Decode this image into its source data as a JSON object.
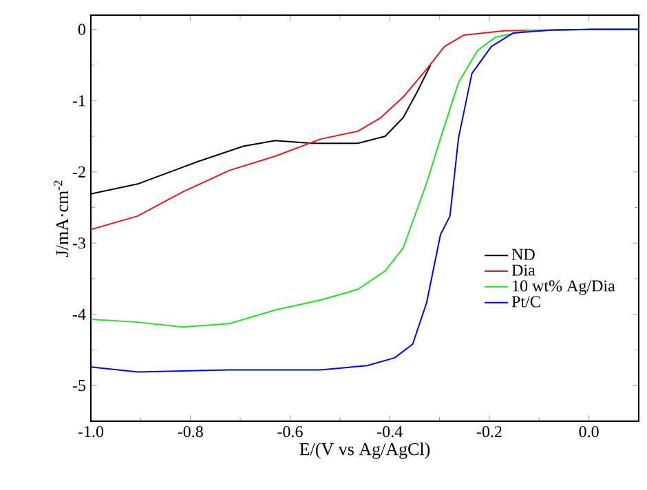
{
  "chart_data": {
    "type": "line",
    "xlabel": "E/(V vs Ag/AgCl)",
    "ylabel": "J/mA·cm$^{-2}$",
    "xlim": [
      -1.0,
      0.1
    ],
    "ylim": [
      -5.5,
      0.2
    ],
    "xticks": [
      {
        "value": -1.0,
        "label": "-1.0"
      },
      -0.8,
      -0.6,
      -0.4,
      -0.2,
      {
        "value": 0.0,
        "label": "0.0"
      }
    ],
    "yticks": [
      -5,
      -4,
      -3,
      -2,
      -1,
      0
    ],
    "legend": "right",
    "grid": false,
    "marker": "none",
    "line_style": "solid",
    "series": [
      {
        "name": "ND",
        "color": "#000000",
        "x": [
          -1.0,
          -0.906,
          -0.787,
          -0.694,
          -0.63,
          -0.556,
          -0.464,
          -0.409,
          -0.373,
          -0.345,
          -0.318,
          -0.29,
          -0.251,
          -0.17,
          0.0,
          0.1
        ],
        "values": [
          -2.31,
          -2.17,
          -1.86,
          -1.64,
          -1.56,
          -1.6,
          -1.6,
          -1.5,
          -1.24,
          -0.88,
          -0.5,
          null,
          null,
          null,
          0,
          0
        ]
      },
      {
        "name": "Dia",
        "color": "#e8161b",
        "x": [
          -1.0,
          -0.906,
          -0.815,
          -0.722,
          -0.63,
          -0.539,
          -0.464,
          -0.418,
          -0.373,
          -0.326,
          -0.29,
          -0.251,
          -0.17,
          0.0,
          0.1
        ],
        "values": [
          -2.81,
          -2.62,
          -2.28,
          -1.98,
          -1.78,
          -1.54,
          -1.43,
          -1.24,
          -0.95,
          -0.56,
          -0.24,
          -0.08,
          -0.02,
          0,
          0
        ]
      },
      {
        "name": "10 wt% Ag/Dia",
        "color": "#22e022",
        "x": [
          -1.0,
          -0.906,
          -0.815,
          -0.722,
          -0.63,
          -0.539,
          -0.464,
          -0.409,
          -0.373,
          -0.326,
          -0.298,
          -0.262,
          -0.224,
          -0.188,
          -0.124,
          0.0,
          0.1
        ],
        "values": [
          -4.07,
          -4.11,
          -4.18,
          -4.13,
          -3.94,
          -3.8,
          -3.65,
          -3.39,
          -3.07,
          -2.16,
          -1.53,
          -0.75,
          -0.3,
          -0.11,
          -0.02,
          0,
          0
        ]
      },
      {
        "name": "Pt/C",
        "color": "#0000ff",
        "x": [
          -1.0,
          -0.906,
          -0.722,
          -0.539,
          -0.445,
          -0.39,
          -0.354,
          -0.326,
          -0.298,
          -0.279,
          -0.262,
          -0.235,
          -0.196,
          -0.152,
          -0.077,
          0.0,
          0.1
        ],
        "values": [
          -4.74,
          -4.81,
          -4.78,
          -4.78,
          -4.72,
          -4.61,
          -4.42,
          -3.84,
          -2.88,
          -2.62,
          -1.53,
          -0.62,
          -0.24,
          -0.05,
          -0.01,
          0,
          0
        ]
      }
    ]
  }
}
